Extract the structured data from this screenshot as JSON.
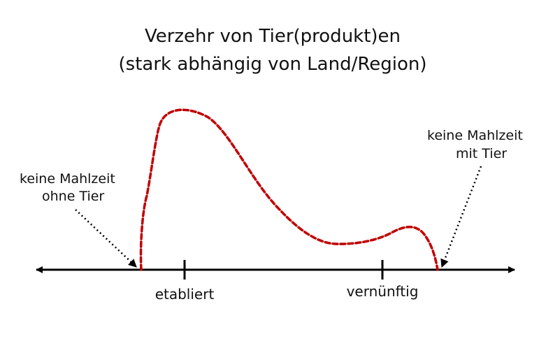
{
  "title": {
    "line1": "Verzehr von Tier(produkt)en",
    "line2": "(stark abhängig von Land/Region)"
  },
  "axis": {
    "ticks": [
      "etabliert",
      "vernünftig"
    ]
  },
  "annotations": {
    "left": {
      "line1": "keine Mahlzeit",
      "line2": "ohne Tier"
    },
    "right": {
      "line1": "keine Mahlzeit",
      "line2": "mit Tier"
    }
  },
  "colors": {
    "curve": "#c00000",
    "axis": "#000000",
    "text": "#111111"
  }
}
